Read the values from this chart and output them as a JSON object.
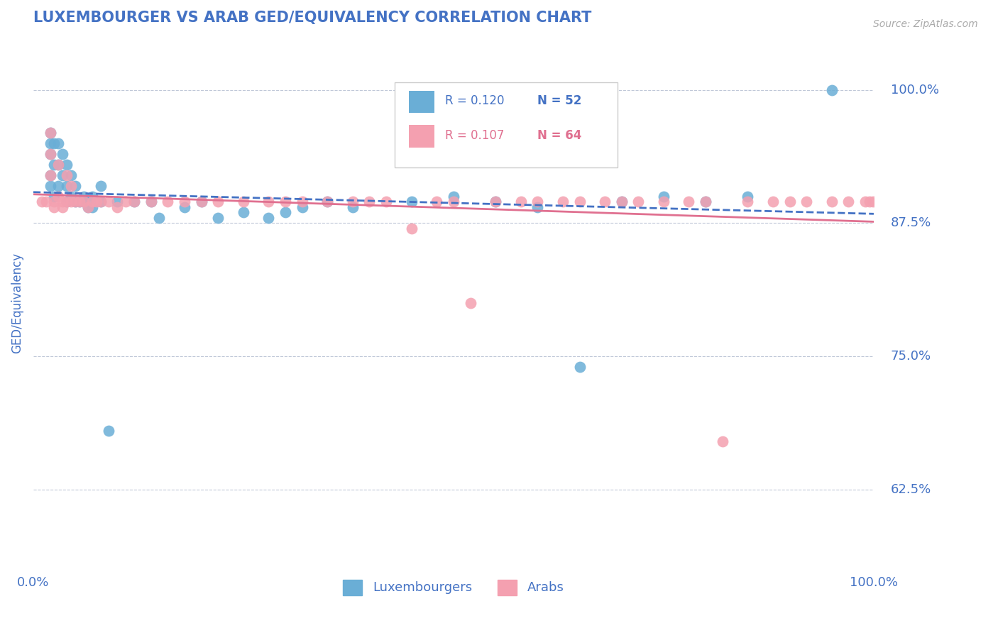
{
  "title": "LUXEMBOURGER VS ARAB GED/EQUIVALENCY CORRELATION CHART",
  "source_text": "Source: ZipAtlas.com",
  "xlabel": "",
  "ylabel": "GED/Equivalency",
  "legend_entries": [
    "Luxembourgers",
    "Arabs"
  ],
  "blue_R": 0.12,
  "blue_N": 52,
  "pink_R": 0.107,
  "pink_N": 64,
  "blue_color": "#6aaed6",
  "pink_color": "#f4a0b0",
  "blue_line_color": "#4472c4",
  "pink_line_color": "#e07090",
  "title_color": "#4472c4",
  "axis_label_color": "#4472c4",
  "tick_color": "#4472c4",
  "background_color": "#ffffff",
  "grid_color": "#c0c8d8",
  "xlim": [
    0.0,
    1.0
  ],
  "ylim": [
    0.55,
    1.05
  ],
  "x_ticks": [
    0.0,
    1.0
  ],
  "x_tick_labels": [
    "0.0%",
    "100.0%"
  ],
  "y_ticks": [
    0.625,
    0.75,
    0.875,
    1.0
  ],
  "y_tick_labels": [
    "62.5%",
    "75.0%",
    "87.5%",
    "100.0%"
  ],
  "blue_scatter_x": [
    0.02,
    0.02,
    0.02,
    0.02,
    0.02,
    0.025,
    0.025,
    0.025,
    0.03,
    0.03,
    0.03,
    0.035,
    0.035,
    0.04,
    0.04,
    0.04,
    0.045,
    0.045,
    0.05,
    0.05,
    0.055,
    0.06,
    0.06,
    0.065,
    0.07,
    0.07,
    0.08,
    0.08,
    0.09,
    0.1,
    0.12,
    0.14,
    0.15,
    0.18,
    0.2,
    0.22,
    0.25,
    0.28,
    0.3,
    0.32,
    0.35,
    0.38,
    0.45,
    0.5,
    0.55,
    0.6,
    0.65,
    0.7,
    0.75,
    0.8,
    0.85,
    0.95
  ],
  "blue_scatter_y": [
    0.96,
    0.95,
    0.94,
    0.92,
    0.91,
    0.95,
    0.93,
    0.9,
    0.95,
    0.93,
    0.91,
    0.94,
    0.92,
    0.93,
    0.91,
    0.895,
    0.92,
    0.9,
    0.91,
    0.895,
    0.895,
    0.9,
    0.895,
    0.89,
    0.9,
    0.89,
    0.91,
    0.895,
    0.68,
    0.895,
    0.895,
    0.895,
    0.88,
    0.89,
    0.895,
    0.88,
    0.885,
    0.88,
    0.885,
    0.89,
    0.895,
    0.89,
    0.895,
    0.9,
    0.895,
    0.89,
    0.74,
    0.895,
    0.9,
    0.895,
    0.9,
    1.0
  ],
  "pink_scatter_x": [
    0.01,
    0.015,
    0.02,
    0.02,
    0.02,
    0.025,
    0.025,
    0.03,
    0.03,
    0.035,
    0.035,
    0.04,
    0.04,
    0.045,
    0.045,
    0.05,
    0.055,
    0.06,
    0.065,
    0.07,
    0.075,
    0.08,
    0.09,
    0.1,
    0.11,
    0.12,
    0.14,
    0.16,
    0.18,
    0.2,
    0.22,
    0.25,
    0.28,
    0.3,
    0.32,
    0.35,
    0.38,
    0.4,
    0.42,
    0.45,
    0.48,
    0.5,
    0.52,
    0.55,
    0.58,
    0.6,
    0.63,
    0.65,
    0.68,
    0.7,
    0.72,
    0.75,
    0.78,
    0.8,
    0.82,
    0.85,
    0.88,
    0.9,
    0.92,
    0.95,
    0.97,
    0.99,
    0.995,
    0.999
  ],
  "pink_scatter_y": [
    0.895,
    0.895,
    0.96,
    0.94,
    0.92,
    0.895,
    0.89,
    0.93,
    0.9,
    0.895,
    0.89,
    0.92,
    0.895,
    0.91,
    0.895,
    0.895,
    0.895,
    0.895,
    0.89,
    0.895,
    0.895,
    0.895,
    0.895,
    0.89,
    0.895,
    0.895,
    0.895,
    0.895,
    0.895,
    0.895,
    0.895,
    0.895,
    0.895,
    0.895,
    0.895,
    0.895,
    0.895,
    0.895,
    0.895,
    0.87,
    0.895,
    0.895,
    0.8,
    0.895,
    0.895,
    0.895,
    0.895,
    0.895,
    0.895,
    0.895,
    0.895,
    0.895,
    0.895,
    0.895,
    0.67,
    0.895,
    0.895,
    0.895,
    0.895,
    0.895,
    0.895,
    0.895,
    0.895,
    0.895
  ]
}
